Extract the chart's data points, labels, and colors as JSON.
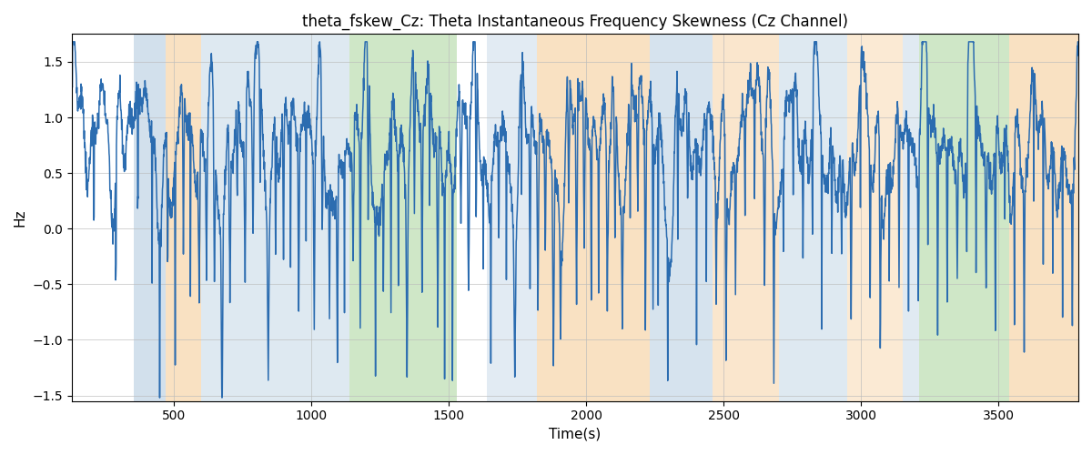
{
  "title": "theta_fskew_Cz: Theta Instantaneous Frequency Skewness (Cz Channel)",
  "xlabel": "Time(s)",
  "ylabel": "Hz",
  "xlim": [
    130,
    3790
  ],
  "ylim": [
    -1.55,
    1.75
  ],
  "line_color": "#2b6cb0",
  "line_width": 1.1,
  "bg_bands": [
    {
      "xstart": 355,
      "xend": 470,
      "color": "#aec8de",
      "alpha": 0.55
    },
    {
      "xstart": 470,
      "xend": 600,
      "color": "#f5c990",
      "alpha": 0.55
    },
    {
      "xstart": 600,
      "xend": 1140,
      "color": "#aec8de",
      "alpha": 0.4
    },
    {
      "xstart": 1140,
      "xend": 1530,
      "color": "#a8d49a",
      "alpha": 0.55
    },
    {
      "xstart": 1640,
      "xend": 1820,
      "color": "#aec8de",
      "alpha": 0.35
    },
    {
      "xstart": 1820,
      "xend": 2230,
      "color": "#f5c990",
      "alpha": 0.55
    },
    {
      "xstart": 2230,
      "xend": 2460,
      "color": "#aec8de",
      "alpha": 0.5
    },
    {
      "xstart": 2460,
      "xend": 2700,
      "color": "#f5c990",
      "alpha": 0.45
    },
    {
      "xstart": 2700,
      "xend": 2950,
      "color": "#aec8de",
      "alpha": 0.4
    },
    {
      "xstart": 2950,
      "xend": 3150,
      "color": "#f5c990",
      "alpha": 0.38
    },
    {
      "xstart": 3150,
      "xend": 3210,
      "color": "#aec8de",
      "alpha": 0.38
    },
    {
      "xstart": 3210,
      "xend": 3540,
      "color": "#a8d49a",
      "alpha": 0.55
    },
    {
      "xstart": 3540,
      "xend": 3820,
      "color": "#f5c990",
      "alpha": 0.55
    }
  ],
  "grid_color": "#bbbbbb",
  "grid_alpha": 0.65,
  "title_fontsize": 12,
  "label_fontsize": 11,
  "tick_fontsize": 10,
  "figsize": [
    12,
    5
  ],
  "dpi": 100,
  "xticks": [
    500,
    1000,
    1500,
    2000,
    2500,
    3000,
    3500
  ],
  "yticks": [
    -1.5,
    -1.0,
    -0.5,
    0.0,
    0.5,
    1.0,
    1.5
  ],
  "seed": 2023,
  "n_points": 3700,
  "t_start": 130,
  "t_end": 3790
}
